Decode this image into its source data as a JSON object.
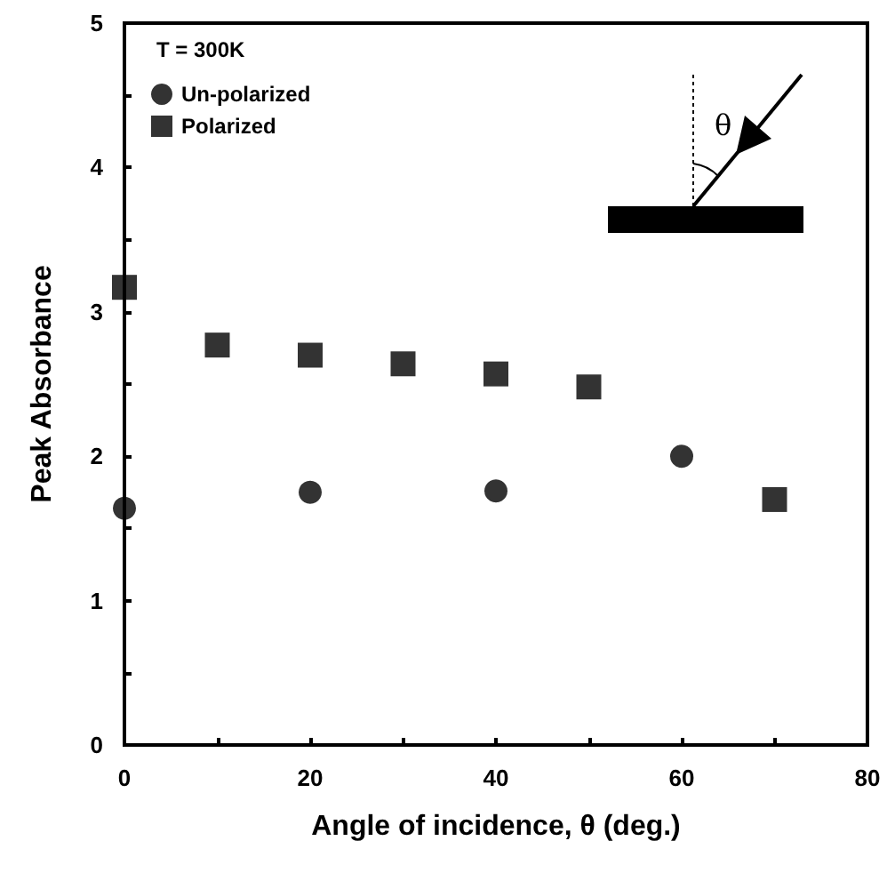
{
  "chart_data": {
    "type": "scatter",
    "xlabel": "Angle of incidence, θ (deg.)",
    "ylabel": "Peak Absorbance",
    "legend_title": "T = 300K",
    "legend": "top left",
    "grid": false,
    "xlim": [
      0,
      80
    ],
    "xticks": [
      0,
      {
        "value": 10,
        "label": null
      },
      20,
      {
        "value": 30,
        "label": null
      },
      40,
      {
        "value": 50,
        "label": null
      },
      60,
      {
        "value": 70,
        "label": null
      },
      80
    ],
    "ylim": [
      0,
      5
    ],
    "yticks": [
      0,
      {
        "value": 0.5,
        "label": null
      },
      1,
      {
        "value": 1.5,
        "label": null
      },
      2,
      {
        "value": 2.5,
        "label": null
      },
      3,
      {
        "value": 3.5,
        "label": null
      },
      4,
      {
        "value": 4.5,
        "label": null
      },
      5
    ],
    "annotations": [
      "θ"
    ],
    "series": [
      {
        "name": "Un-polarized",
        "color": "#000000",
        "marker": "circle",
        "x": [
          0,
          20,
          40,
          60
        ],
        "values": [
          1.64,
          1.75,
          1.76,
          2.0
        ]
      },
      {
        "name": "Polarized",
        "color": "#000000",
        "marker": "square",
        "x": [
          0,
          10,
          20,
          30,
          40,
          50,
          70
        ],
        "values": [
          3.17,
          2.77,
          2.7,
          2.64,
          2.57,
          2.48,
          1.7
        ]
      }
    ]
  }
}
